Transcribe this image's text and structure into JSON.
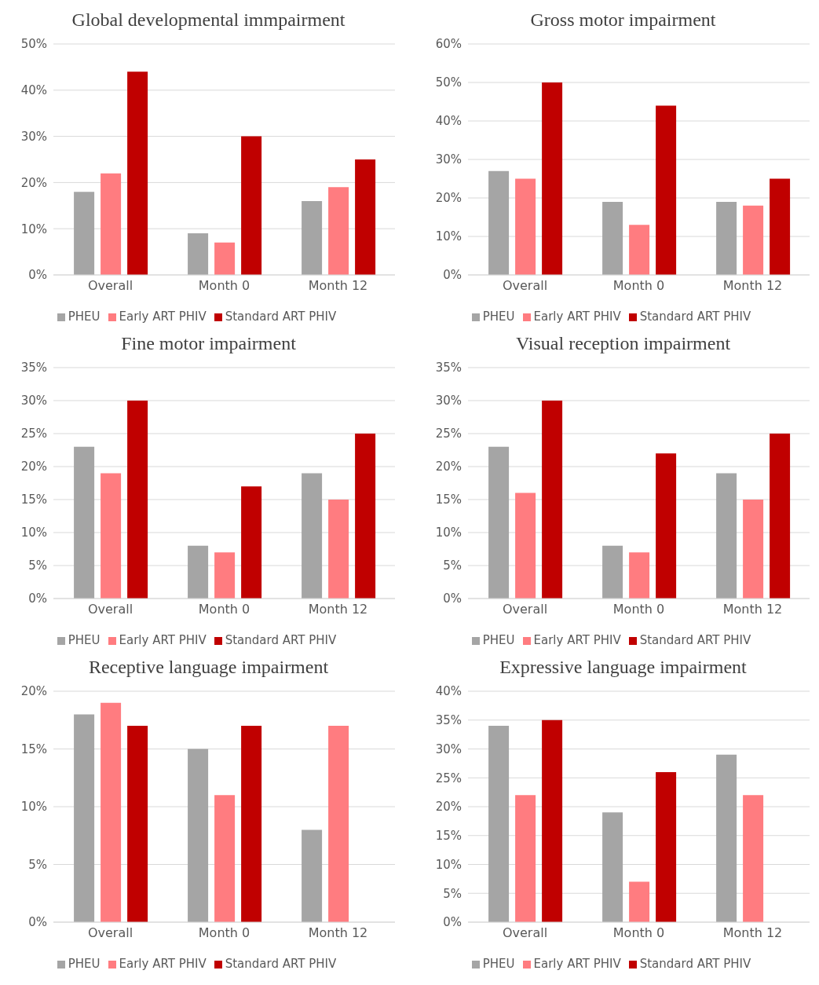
{
  "chart_data": [
    {
      "type": "bar",
      "title": "Global developmental immpairment",
      "categories": [
        "Overall",
        "Month 0",
        "Month 12"
      ],
      "series": [
        {
          "name": "PHEU",
          "color": "#a5a5a5",
          "values": [
            18,
            9,
            16
          ]
        },
        {
          "name": "Early ART PHIV",
          "color": "#ff7c80",
          "values": [
            22,
            7,
            19
          ]
        },
        {
          "name": "Standard ART PHIV",
          "color": "#c00000",
          "values": [
            44,
            30,
            25
          ]
        }
      ],
      "ylim": [
        0,
        50
      ],
      "yticks": [
        {
          "value": 0,
          "label": "0%"
        },
        {
          "value": 10,
          "label": "10%"
        },
        {
          "value": 20,
          "label": "20%"
        },
        {
          "value": 30,
          "label": "30%"
        },
        {
          "value": 40,
          "label": "40%"
        },
        {
          "value": 50,
          "label": "50%"
        }
      ],
      "grid": "y",
      "legend": "bottom"
    },
    {
      "type": "bar",
      "title": "Gross motor impairment",
      "categories": [
        "Overall",
        "Month 0",
        "Month 12"
      ],
      "series": [
        {
          "name": "PHEU",
          "color": "#a5a5a5",
          "values": [
            27,
            19,
            19
          ]
        },
        {
          "name": "Early ART PHIV",
          "color": "#ff7c80",
          "values": [
            25,
            13,
            18
          ]
        },
        {
          "name": "Standard ART PHIV",
          "color": "#c00000",
          "values": [
            50,
            44,
            25
          ]
        }
      ],
      "ylim": [
        0,
        60
      ],
      "yticks": [
        {
          "value": 0,
          "label": "0%"
        },
        {
          "value": 10,
          "label": "10%"
        },
        {
          "value": 20,
          "label": "20%"
        },
        {
          "value": 30,
          "label": "30%"
        },
        {
          "value": 40,
          "label": "40%"
        },
        {
          "value": 50,
          "label": "50%"
        },
        {
          "value": 60,
          "label": "60%"
        }
      ],
      "grid": "y",
      "legend": "bottom"
    },
    {
      "type": "bar",
      "title": "Fine motor impairment",
      "categories": [
        "Overall",
        "Month 0",
        "Month 12"
      ],
      "series": [
        {
          "name": "PHEU",
          "color": "#a5a5a5",
          "values": [
            23,
            8,
            19
          ]
        },
        {
          "name": "Early ART PHIV",
          "color": "#ff7c80",
          "values": [
            19,
            7,
            15
          ]
        },
        {
          "name": "Standard ART PHIV",
          "color": "#c00000",
          "values": [
            30,
            17,
            25
          ]
        }
      ],
      "ylim": [
        0,
        35
      ],
      "yticks": [
        {
          "value": 0,
          "label": "0%"
        },
        {
          "value": 5,
          "label": "5%"
        },
        {
          "value": 10,
          "label": "10%"
        },
        {
          "value": 15,
          "label": "15%"
        },
        {
          "value": 20,
          "label": "20%"
        },
        {
          "value": 25,
          "label": "25%"
        },
        {
          "value": 30,
          "label": "30%"
        },
        {
          "value": 35,
          "label": "35%"
        }
      ],
      "grid": "y",
      "legend": "bottom"
    },
    {
      "type": "bar",
      "title": "Visual reception impairment",
      "categories": [
        "Overall",
        "Month 0",
        "Month 12"
      ],
      "series": [
        {
          "name": "PHEU",
          "color": "#a5a5a5",
          "values": [
            23,
            8,
            19
          ]
        },
        {
          "name": "Early ART PHIV",
          "color": "#ff7c80",
          "values": [
            16,
            7,
            15
          ]
        },
        {
          "name": "Standard ART PHIV",
          "color": "#c00000",
          "values": [
            30,
            22,
            25
          ]
        }
      ],
      "ylim": [
        0,
        35
      ],
      "yticks": [
        {
          "value": 0,
          "label": "0%"
        },
        {
          "value": 5,
          "label": "5%"
        },
        {
          "value": 10,
          "label": "10%"
        },
        {
          "value": 15,
          "label": "15%"
        },
        {
          "value": 20,
          "label": "20%"
        },
        {
          "value": 25,
          "label": "25%"
        },
        {
          "value": 30,
          "label": "30%"
        },
        {
          "value": 35,
          "label": "35%"
        }
      ],
      "grid": "y",
      "legend": "bottom"
    },
    {
      "type": "bar",
      "title": "Receptive language impairment",
      "categories": [
        "Overall",
        "Month 0",
        "Month 12"
      ],
      "series": [
        {
          "name": "PHEU",
          "color": "#a5a5a5",
          "values": [
            18,
            15,
            8
          ]
        },
        {
          "name": "Early ART PHIV",
          "color": "#ff7c80",
          "values": [
            19,
            11,
            17
          ]
        },
        {
          "name": "Standard ART PHIV",
          "color": "#c00000",
          "values": [
            17,
            17,
            null
          ]
        }
      ],
      "ylim": [
        0,
        20
      ],
      "yticks": [
        {
          "value": 0,
          "label": "0%"
        },
        {
          "value": 5,
          "label": "5%"
        },
        {
          "value": 10,
          "label": "10%"
        },
        {
          "value": 15,
          "label": "15%"
        },
        {
          "value": 20,
          "label": "20%"
        }
      ],
      "grid": "y",
      "legend": "bottom"
    },
    {
      "type": "bar",
      "title": "Expressive language impairment",
      "categories": [
        "Overall",
        "Month 0",
        "Month 12"
      ],
      "series": [
        {
          "name": "PHEU",
          "color": "#a5a5a5",
          "values": [
            34,
            19,
            29
          ]
        },
        {
          "name": "Early ART PHIV",
          "color": "#ff7c80",
          "values": [
            22,
            7,
            22
          ]
        },
        {
          "name": "Standard ART PHIV",
          "color": "#c00000",
          "values": [
            35,
            26,
            null
          ]
        }
      ],
      "ylim": [
        0,
        40
      ],
      "yticks": [
        {
          "value": 0,
          "label": "0%"
        },
        {
          "value": 5,
          "label": "5%"
        },
        {
          "value": 10,
          "label": "10%"
        },
        {
          "value": 15,
          "label": "15%"
        },
        {
          "value": 20,
          "label": "20%"
        },
        {
          "value": 25,
          "label": "25%"
        },
        {
          "value": 30,
          "label": "30%"
        },
        {
          "value": 35,
          "label": "35%"
        },
        {
          "value": 40,
          "label": "40%"
        }
      ],
      "grid": "y",
      "legend": "bottom"
    }
  ]
}
